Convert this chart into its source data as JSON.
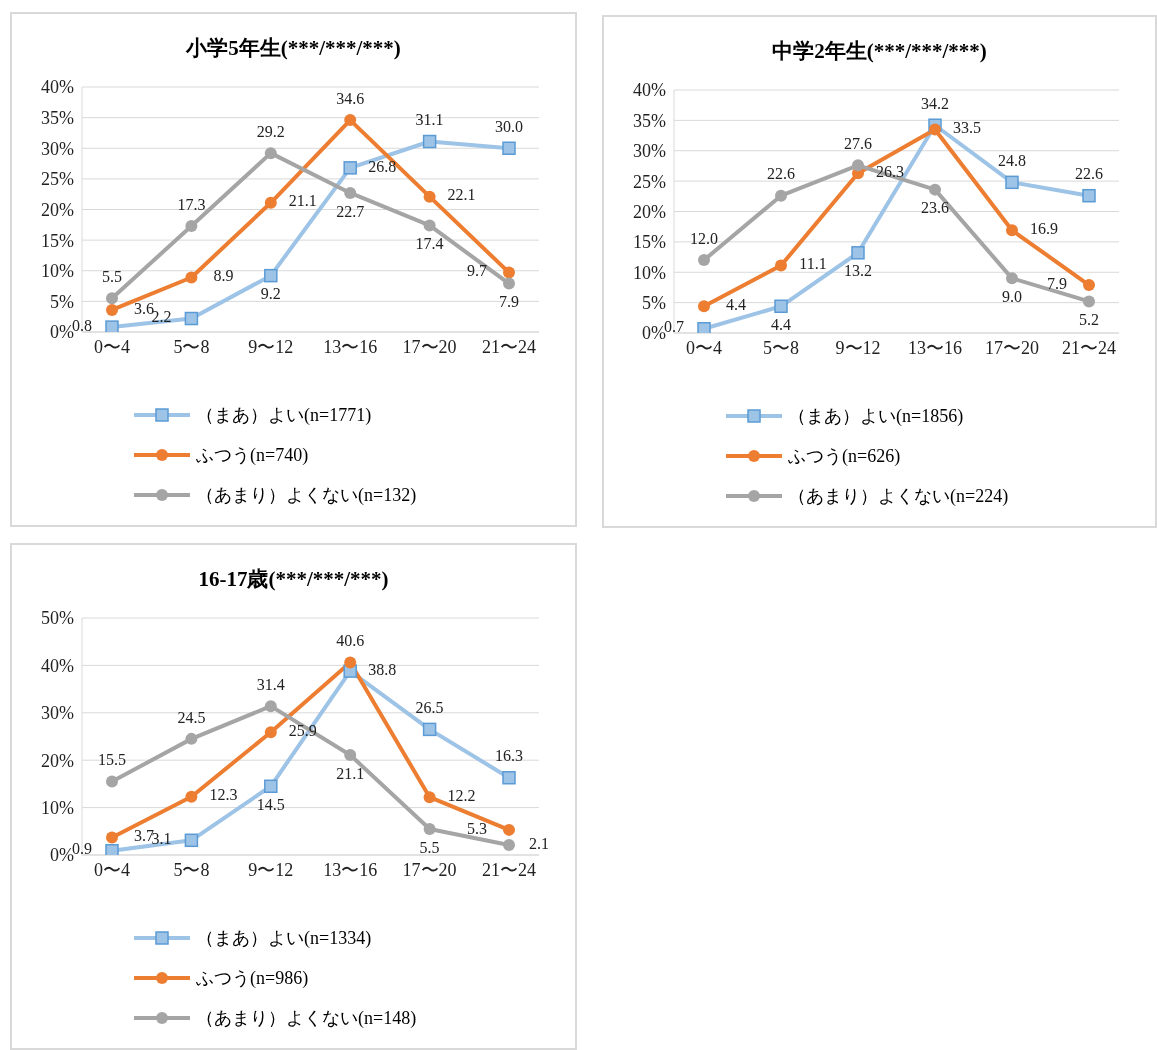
{
  "chart_data": [
    {
      "type": "line",
      "title": "小学5年生(***/***/***)",
      "categories": [
        "0〜4",
        "5〜8",
        "9〜12",
        "13〜16",
        "17〜20",
        "21〜24"
      ],
      "ylim": [
        0,
        40
      ],
      "yticks": [
        {
          "value": 0,
          "label": "0%"
        },
        {
          "value": 5,
          "label": "5%"
        },
        {
          "value": 10,
          "label": "10%"
        },
        {
          "value": 15,
          "label": "15%"
        },
        {
          "value": 20,
          "label": "20%"
        },
        {
          "value": 25,
          "label": "25%"
        },
        {
          "value": 30,
          "label": "30%"
        },
        {
          "value": 35,
          "label": "35%"
        },
        {
          "value": 40,
          "label": "40%"
        }
      ],
      "grid": "y",
      "legend": "bottom",
      "series": [
        {
          "name": "（まあ）よい(n=1771)",
          "color": "#9dc3e6",
          "marker": "square",
          "values": [
            0.8,
            2.2,
            9.2,
            26.8,
            31.1,
            30.0
          ],
          "value_labels": [
            "0.8",
            "2.2",
            "9.2",
            "26.8",
            "31.1",
            "30.0"
          ]
        },
        {
          "name": "ふつう(n=740)",
          "color": "#ed7d31",
          "marker": "circle",
          "values": [
            3.6,
            8.9,
            21.1,
            34.6,
            22.1,
            9.7
          ],
          "value_labels": [
            "3.6",
            "8.9",
            "21.1",
            "34.6",
            "22.1",
            "9.7"
          ]
        },
        {
          "name": "（あまり）よくない(n=132)",
          "color": "#a5a5a5",
          "marker": "circle",
          "values": [
            5.5,
            17.3,
            29.2,
            22.7,
            17.4,
            7.9
          ],
          "value_labels": [
            "5.5",
            "17.3",
            "29.2",
            "22.7",
            "17.4",
            "7.9"
          ]
        }
      ]
    },
    {
      "type": "line",
      "title": "中学2年生(***/***/***)",
      "categories": [
        "0〜4",
        "5〜8",
        "9〜12",
        "13〜16",
        "17〜20",
        "21〜24"
      ],
      "ylim": [
        0,
        40
      ],
      "yticks": [
        {
          "value": 0,
          "label": "0%"
        },
        {
          "value": 5,
          "label": "5%"
        },
        {
          "value": 10,
          "label": "10%"
        },
        {
          "value": 15,
          "label": "15%"
        },
        {
          "value": 20,
          "label": "20%"
        },
        {
          "value": 25,
          "label": "25%"
        },
        {
          "value": 30,
          "label": "30%"
        },
        {
          "value": 35,
          "label": "35%"
        },
        {
          "value": 40,
          "label": "40%"
        }
      ],
      "grid": "y",
      "legend": "bottom",
      "series": [
        {
          "name": "（まあ）よい(n=1856)",
          "color": "#9dc3e6",
          "marker": "square",
          "values": [
            0.7,
            4.4,
            13.2,
            34.2,
            24.8,
            22.6
          ],
          "value_labels": [
            "0.7",
            "4.4",
            "13.2",
            "34.2",
            "24.8",
            "22.6"
          ]
        },
        {
          "name": "ふつう(n=626)",
          "color": "#ed7d31",
          "marker": "circle",
          "values": [
            4.4,
            11.1,
            26.3,
            33.5,
            16.9,
            7.9
          ],
          "value_labels": [
            "4.4",
            "11.1",
            "26.3",
            "33.5",
            "16.9",
            "7.9"
          ]
        },
        {
          "name": "（あまり）よくない(n=224)",
          "color": "#a5a5a5",
          "marker": "circle",
          "values": [
            12.0,
            22.6,
            27.6,
            23.6,
            9.0,
            5.2
          ],
          "value_labels": [
            "12.0",
            "22.6",
            "27.6",
            "23.6",
            "9.0",
            "5.2"
          ]
        }
      ]
    },
    {
      "type": "line",
      "title": "16-17歳(***/***/***)",
      "categories": [
        "0〜4",
        "5〜8",
        "9〜12",
        "13〜16",
        "17〜20",
        "21〜24"
      ],
      "ylim": [
        0,
        50
      ],
      "yticks": [
        {
          "value": 0,
          "label": "0%"
        },
        {
          "value": 10,
          "label": "10%"
        },
        {
          "value": 20,
          "label": "20%"
        },
        {
          "value": 30,
          "label": "30%"
        },
        {
          "value": 40,
          "label": "40%"
        },
        {
          "value": 50,
          "label": "50%"
        }
      ],
      "grid": "y",
      "legend": "bottom",
      "series": [
        {
          "name": "（まあ）よい(n=1334)",
          "color": "#9dc3e6",
          "marker": "square",
          "values": [
            0.9,
            3.1,
            14.5,
            38.8,
            26.5,
            16.3
          ],
          "value_labels": [
            "0.9",
            "3.1",
            "14.5",
            "38.8",
            "26.5",
            "16.3"
          ]
        },
        {
          "name": "ふつう(n=986)",
          "color": "#ed7d31",
          "marker": "circle",
          "values": [
            3.7,
            12.3,
            25.9,
            40.6,
            12.2,
            5.3
          ],
          "value_labels": [
            "3.7",
            "12.3",
            "25.9",
            "40.6",
            "12.2",
            "5.3"
          ]
        },
        {
          "name": "（あまり）よくない(n=148)",
          "color": "#a5a5a5",
          "marker": "circle",
          "values": [
            15.5,
            24.5,
            31.4,
            21.1,
            5.5,
            2.1
          ],
          "value_labels": [
            "15.5",
            "24.5",
            "31.4",
            "21.1",
            "5.5",
            "2.1"
          ]
        }
      ]
    }
  ]
}
